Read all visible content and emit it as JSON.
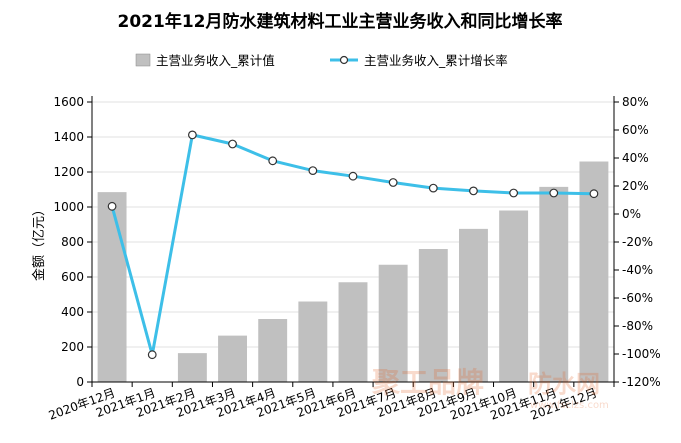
{
  "chart_data": {
    "type": "bar+line",
    "title": "2021年12月防水建筑材料工业主营业务收入和同比增长率",
    "ylabel": "金额（亿元）",
    "categories": [
      "2020年12月",
      "2021年1月",
      "2021年2月",
      "2021年3月",
      "2021年4月",
      "2021年5月",
      "2021年6月",
      "2021年7月",
      "2021年8月",
      "2021年9月",
      "2021年10月",
      "2021年11月",
      "2021年12月"
    ],
    "y_ticks": [
      "0",
      "200",
      "400",
      "600",
      "800",
      "1000",
      "1200",
      "1400",
      "1600"
    ],
    "y2_ticks": [
      "-120%",
      "-100%",
      "-80%",
      "-60%",
      "-40%",
      "-20%",
      "0%",
      "20%",
      "40%",
      "60%",
      "80%"
    ],
    "ylim": [
      0,
      1600
    ],
    "y2lim": [
      -120,
      80
    ],
    "series": [
      {
        "name": "主营业务收入_累计值",
        "kind": "bar",
        "axis": "left",
        "color": "#c0c0c0",
        "values": [
          1085,
          null,
          165,
          265,
          360,
          460,
          570,
          670,
          760,
          875,
          980,
          1115,
          1260
        ]
      },
      {
        "name": "主营业务收入_累计增长率",
        "kind": "line",
        "axis": "right",
        "color": "#3dbfe8",
        "values": [
          5.5,
          -100.5,
          56.5,
          50,
          38,
          31,
          27,
          22.5,
          18.5,
          16.5,
          15,
          15,
          14.5
        ]
      }
    ],
    "legend_position": "top",
    "watermark": "聚工品牌防水网 www.fsclzs.com"
  }
}
